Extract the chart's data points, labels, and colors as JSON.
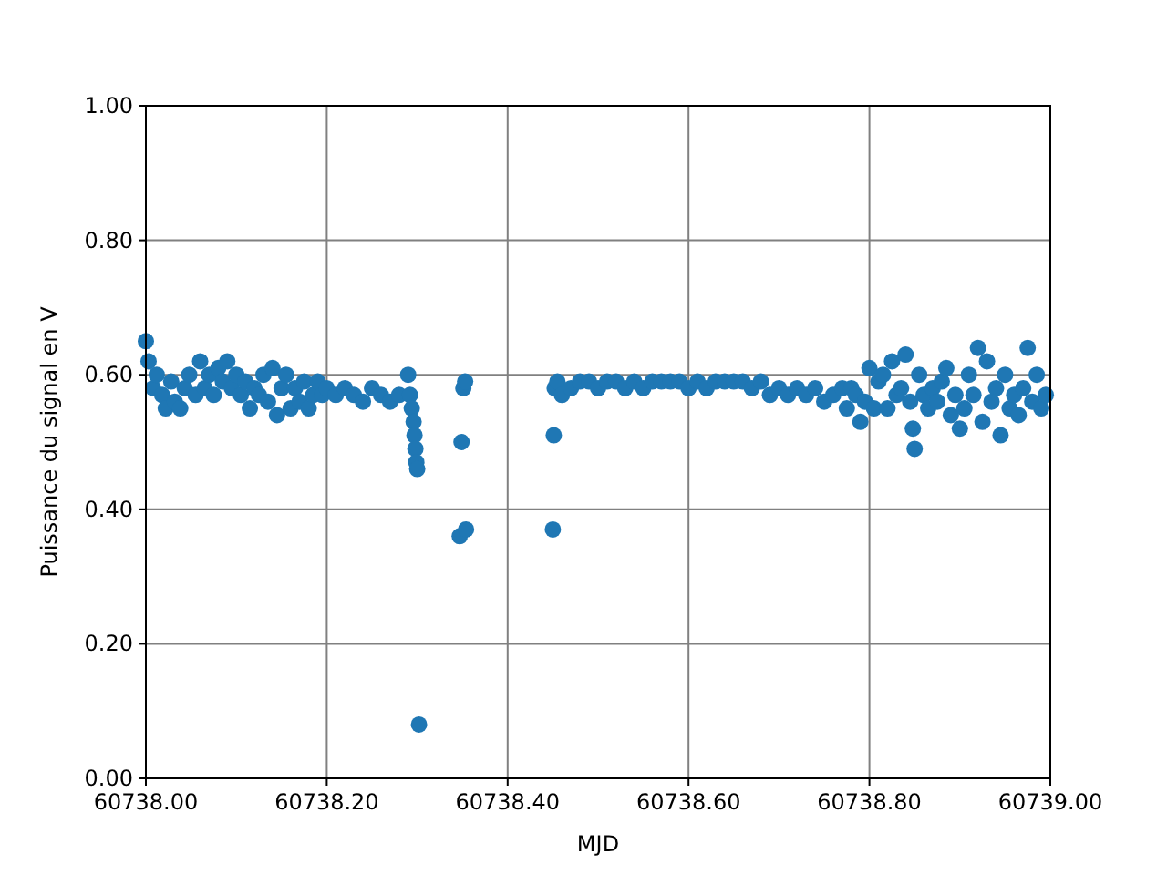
{
  "chart_data": {
    "type": "scatter",
    "xlabel": "MJD",
    "ylabel": "Puissance du signal en V",
    "color": "#1f77b4",
    "marker": "circle",
    "grid": true,
    "xlim": [
      60738,
      60739
    ],
    "ylim": [
      0,
      1
    ],
    "xticks": [
      {
        "value": 60738,
        "label": "60738.00"
      },
      {
        "value": 60738.2,
        "label": "60738.20"
      },
      {
        "value": 60738.4,
        "label": "60738.40"
      },
      {
        "value": 60738.6,
        "label": "60738.60"
      },
      {
        "value": 60738.8,
        "label": "60738.80"
      },
      {
        "value": 60739,
        "label": "60739.00"
      }
    ],
    "yticks": [
      {
        "value": 0,
        "label": "0.00"
      },
      {
        "value": 0.2,
        "label": "0.20"
      },
      {
        "value": 0.4,
        "label": "0.40"
      },
      {
        "value": 0.6,
        "label": "0.60"
      },
      {
        "value": 0.8,
        "label": "0.80"
      },
      {
        "value": 1,
        "label": "1.00"
      }
    ],
    "x": [
      60738.0,
      60738.003,
      60738.008,
      60738.012,
      60738.018,
      60738.022,
      60738.028,
      60738.032,
      60738.038,
      60738.043,
      60738.048,
      60738.055,
      60738.06,
      60738.065,
      60738.07,
      60738.075,
      60738.08,
      60738.085,
      60738.09,
      60738.095,
      60738.1,
      60738.105,
      60738.11,
      60738.115,
      60738.12,
      60738.125,
      60738.13,
      60738.135,
      60738.14,
      60738.145,
      60738.15,
      60738.155,
      60738.16,
      60738.165,
      60738.17,
      60738.175,
      60738.18,
      60738.185,
      60738.19,
      60738.195,
      60738.2,
      60738.21,
      60738.22,
      60738.23,
      60738.24,
      60738.25,
      60738.26,
      60738.27,
      60738.28,
      60738.29,
      60738.292,
      60738.294,
      60738.296,
      60738.297,
      60738.298,
      60738.299,
      60738.3,
      60738.302,
      60738.347,
      60738.349,
      60738.351,
      60738.353,
      60738.354,
      60738.45,
      60738.451,
      60738.452,
      60738.455,
      60738.46,
      60738.47,
      60738.48,
      60738.49,
      60738.5,
      60738.51,
      60738.52,
      60738.53,
      60738.54,
      60738.55,
      60738.56,
      60738.57,
      60738.58,
      60738.59,
      60738.6,
      60738.61,
      60738.62,
      60738.63,
      60738.64,
      60738.65,
      60738.66,
      60738.67,
      60738.68,
      60738.69,
      60738.7,
      60738.71,
      60738.72,
      60738.73,
      60738.74,
      60738.75,
      60738.76,
      60738.77,
      60738.775,
      60738.78,
      60738.785,
      60738.79,
      60738.795,
      60738.8,
      60738.805,
      60738.81,
      60738.815,
      60738.82,
      60738.825,
      60738.83,
      60738.835,
      60738.84,
      60738.845,
      60738.848,
      60738.85,
      60738.855,
      60738.86,
      60738.865,
      60738.87,
      60738.875,
      60738.88,
      60738.885,
      60738.89,
      60738.895,
      60738.9,
      60738.905,
      60738.91,
      60738.915,
      60738.92,
      60738.925,
      60738.93,
      60738.935,
      60738.94,
      60738.945,
      60738.95,
      60738.955,
      60738.96,
      60738.965,
      60738.97,
      60738.975,
      60738.98,
      60738.985,
      60738.99,
      60738.995
    ],
    "values": [
      0.65,
      0.62,
      0.58,
      0.6,
      0.57,
      0.55,
      0.59,
      0.56,
      0.55,
      0.58,
      0.6,
      0.57,
      0.62,
      0.58,
      0.6,
      0.57,
      0.61,
      0.59,
      0.62,
      0.58,
      0.6,
      0.57,
      0.59,
      0.55,
      0.58,
      0.57,
      0.6,
      0.56,
      0.61,
      0.54,
      0.58,
      0.6,
      0.55,
      0.58,
      0.56,
      0.59,
      0.55,
      0.57,
      0.59,
      0.57,
      0.58,
      0.57,
      0.58,
      0.57,
      0.56,
      0.58,
      0.57,
      0.56,
      0.57,
      0.6,
      0.57,
      0.55,
      0.53,
      0.51,
      0.49,
      0.47,
      0.46,
      0.08,
      0.36,
      0.5,
      0.58,
      0.59,
      0.37,
      0.37,
      0.51,
      0.58,
      0.59,
      0.57,
      0.58,
      0.59,
      0.59,
      0.58,
      0.59,
      0.59,
      0.58,
      0.59,
      0.58,
      0.59,
      0.59,
      0.59,
      0.59,
      0.58,
      0.59,
      0.58,
      0.59,
      0.59,
      0.59,
      0.59,
      0.58,
      0.59,
      0.57,
      0.58,
      0.57,
      0.58,
      0.57,
      0.58,
      0.56,
      0.57,
      0.58,
      0.55,
      0.58,
      0.57,
      0.53,
      0.56,
      0.61,
      0.55,
      0.59,
      0.6,
      0.55,
      0.62,
      0.57,
      0.58,
      0.63,
      0.56,
      0.52,
      0.49,
      0.6,
      0.57,
      0.55,
      0.58,
      0.56,
      0.59,
      0.61,
      0.54,
      0.57,
      0.52,
      0.55,
      0.6,
      0.57,
      0.64,
      0.53,
      0.62,
      0.56,
      0.58,
      0.51,
      0.6,
      0.55,
      0.57,
      0.54,
      0.58,
      0.64,
      0.56,
      0.6,
      0.55,
      0.57
    ]
  }
}
